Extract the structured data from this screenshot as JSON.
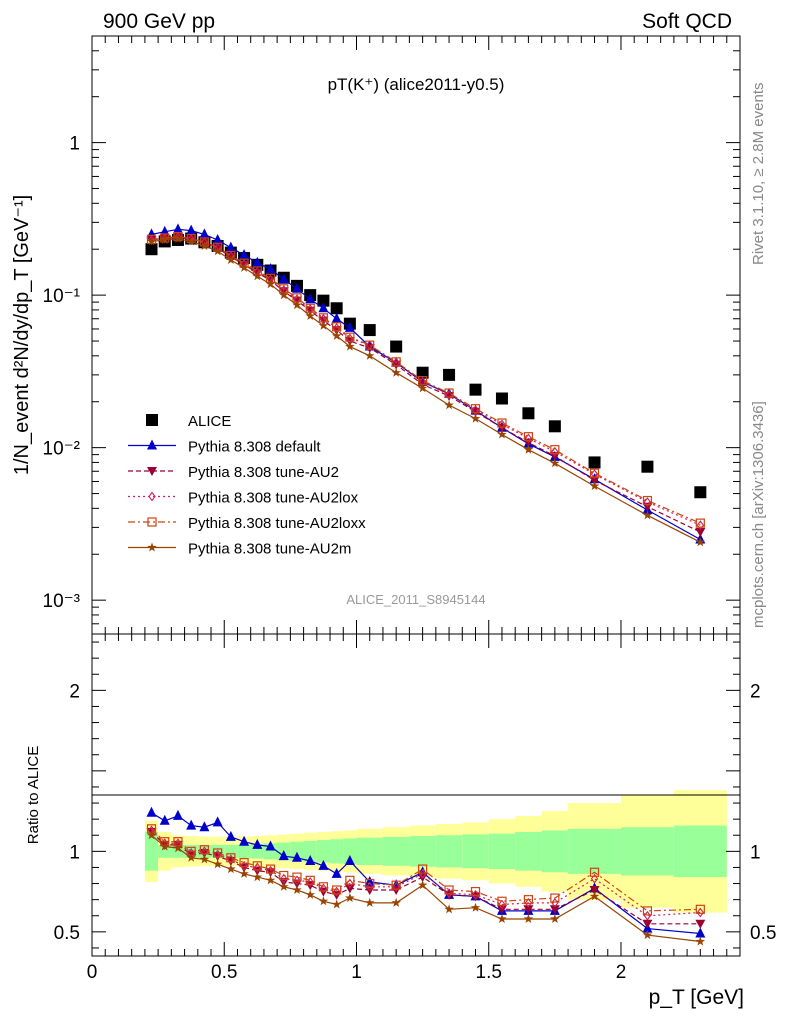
{
  "header": {
    "left": "900 GeV pp",
    "right": "Soft QCD"
  },
  "side_text": {
    "rivet": "Rivet 3.1.10, ≥ 2.8M events",
    "mcplots": "mcplots.cern.ch [arXiv:1306.3436]"
  },
  "chart_data": [
    {
      "type": "scatter",
      "panel": "main",
      "title": "pT(K⁺) (alice2011-y0.5)",
      "watermark": "ALICE_2011_S8945144",
      "ylabel": "1/N_event d²N/dy/dp_T [GeV⁻¹]",
      "xlabel": "p_T [GeV]",
      "xlim": [
        0,
        2.45
      ],
      "ylim": [
        0.0006,
        5
      ],
      "yscale": "log",
      "x_ticks": [
        "0",
        "0.5",
        "1",
        "1.5",
        "2"
      ],
      "y_ticks": [
        "10⁻³",
        "10⁻²",
        "10⁻¹",
        "1"
      ],
      "legend_position": "bottom-left",
      "x": [
        0.225,
        0.275,
        0.325,
        0.375,
        0.425,
        0.475,
        0.525,
        0.575,
        0.625,
        0.675,
        0.725,
        0.775,
        0.825,
        0.875,
        0.925,
        0.975,
        1.05,
        1.15,
        1.25,
        1.35,
        1.45,
        1.55,
        1.65,
        1.75,
        1.9,
        2.1,
        2.3
      ],
      "series": [
        {
          "name": "ALICE",
          "color": "#000000",
          "marker": "square",
          "style": "none",
          "values": [
            0.2,
            0.225,
            0.23,
            0.235,
            0.222,
            0.21,
            0.19,
            0.175,
            0.158,
            0.145,
            0.13,
            0.115,
            0.1,
            0.092,
            0.082,
            0.065,
            0.059,
            0.046,
            0.031,
            0.03,
            0.024,
            0.021,
            0.0168,
            0.0138,
            0.008,
            0.0075,
            0.0051
          ]
        },
        {
          "name": "Pythia 8.308 default",
          "color": "#0000cc",
          "marker": "triangle-up",
          "style": "solid",
          "values": [
            0.25,
            0.26,
            0.27,
            0.265,
            0.25,
            0.23,
            0.205,
            0.183,
            0.163,
            0.148,
            0.127,
            0.11,
            0.094,
            0.082,
            0.07,
            0.061,
            0.046,
            0.036,
            0.027,
            0.0225,
            0.0175,
            0.0135,
            0.0106,
            0.0087,
            0.0062,
            0.0039,
            0.0025
          ]
        },
        {
          "name": "Pythia 8.308 tune-AU2",
          "color": "#990033",
          "marker": "triangle-down",
          "style": "dashed",
          "values": [
            0.23,
            0.235,
            0.24,
            0.232,
            0.22,
            0.203,
            0.178,
            0.158,
            0.14,
            0.125,
            0.106,
            0.092,
            0.079,
            0.068,
            0.059,
            0.05,
            0.045,
            0.035,
            0.026,
            0.0218,
            0.0172,
            0.0135,
            0.0108,
            0.0088,
            0.0061,
            0.0041,
            0.0028
          ]
        },
        {
          "name": "Pythia 8.308 tune-AU2lox",
          "color": "#cc2255",
          "marker": "diamond-open",
          "style": "dotted",
          "values": [
            0.23,
            0.235,
            0.24,
            0.233,
            0.222,
            0.205,
            0.18,
            0.16,
            0.142,
            0.127,
            0.108,
            0.094,
            0.081,
            0.07,
            0.061,
            0.052,
            0.047,
            0.036,
            0.027,
            0.0222,
            0.0176,
            0.0142,
            0.0115,
            0.0094,
            0.0067,
            0.0044,
            0.0031
          ]
        },
        {
          "name": "Pythia 8.308 tune-AU2loxx",
          "color": "#cc4411",
          "marker": "square-open",
          "style": "dashdot",
          "values": [
            0.232,
            0.237,
            0.242,
            0.235,
            0.223,
            0.206,
            0.182,
            0.162,
            0.144,
            0.129,
            0.11,
            0.096,
            0.082,
            0.071,
            0.062,
            0.053,
            0.047,
            0.0365,
            0.0275,
            0.0228,
            0.018,
            0.0145,
            0.0118,
            0.0097,
            0.0068,
            0.0045,
            0.0032
          ]
        },
        {
          "name": "Pythia 8.308 tune-AU2m",
          "color": "#994400",
          "marker": "star",
          "style": "solid",
          "values": [
            0.225,
            0.23,
            0.234,
            0.225,
            0.21,
            0.194,
            0.17,
            0.151,
            0.133,
            0.118,
            0.1,
            0.086,
            0.073,
            0.063,
            0.054,
            0.046,
            0.04,
            0.031,
            0.0245,
            0.019,
            0.0155,
            0.0122,
            0.0097,
            0.0079,
            0.0056,
            0.0036,
            0.0024
          ]
        }
      ]
    },
    {
      "type": "scatter",
      "panel": "ratio",
      "ylabel": "Ratio to ALICE",
      "xlim": [
        0,
        2.45
      ],
      "ylim": [
        0.35,
        2.35
      ],
      "y_ticks": [
        "0.5",
        "1",
        "2"
      ],
      "band_edges": [
        0.2,
        0.25,
        0.3,
        0.35,
        0.4,
        0.45,
        0.5,
        0.55,
        0.6,
        0.65,
        0.7,
        0.75,
        0.8,
        0.85,
        0.9,
        0.95,
        1.0,
        1.1,
        1.2,
        1.3,
        1.4,
        1.5,
        1.6,
        1.7,
        1.8,
        2.0,
        2.2,
        2.4
      ],
      "band_outer": [
        0.19,
        0.12,
        0.1,
        0.095,
        0.092,
        0.09,
        0.09,
        0.092,
        0.095,
        0.1,
        0.105,
        0.11,
        0.115,
        0.12,
        0.125,
        0.13,
        0.14,
        0.15,
        0.16,
        0.17,
        0.18,
        0.2,
        0.22,
        0.25,
        0.3,
        0.35,
        0.38
      ],
      "band_inner": [
        0.12,
        0.04,
        0.04,
        0.04,
        0.04,
        0.04,
        0.04,
        0.042,
        0.045,
        0.05,
        0.055,
        0.06,
        0.065,
        0.07,
        0.075,
        0.08,
        0.085,
        0.09,
        0.095,
        0.1,
        0.105,
        0.11,
        0.12,
        0.13,
        0.14,
        0.15,
        0.16
      ],
      "band_colors": {
        "outer": "#ffff99",
        "inner": "#99ff99"
      },
      "series": [
        {
          "name": "Pythia 8.308 default",
          "color": "#0000cc",
          "values": [
            1.24,
            1.19,
            1.22,
            1.16,
            1.15,
            1.18,
            1.09,
            1.06,
            1.04,
            1.03,
            0.97,
            0.96,
            0.94,
            0.91,
            0.86,
            0.94,
            0.81,
            0.79,
            0.87,
            0.73,
            0.72,
            0.63,
            0.63,
            0.63,
            0.77,
            0.52,
            0.49
          ]
        },
        {
          "name": "Pythia 8.308 tune-AU2",
          "color": "#990033",
          "values": [
            1.12,
            1.04,
            1.04,
            0.98,
            0.99,
            0.97,
            0.94,
            0.9,
            0.88,
            0.87,
            0.81,
            0.8,
            0.79,
            0.75,
            0.73,
            0.77,
            0.76,
            0.76,
            0.84,
            0.73,
            0.72,
            0.64,
            0.64,
            0.64,
            0.76,
            0.55,
            0.55
          ]
        },
        {
          "name": "Pythia 8.308 tune-AU2lox",
          "color": "#cc2255",
          "values": [
            1.13,
            1.05,
            1.05,
            0.99,
            1.0,
            0.98,
            0.95,
            0.91,
            0.9,
            0.88,
            0.83,
            0.82,
            0.81,
            0.77,
            0.75,
            0.8,
            0.78,
            0.78,
            0.86,
            0.74,
            0.73,
            0.67,
            0.68,
            0.68,
            0.83,
            0.6,
            0.62
          ]
        },
        {
          "name": "Pythia 8.308 tune-AU2loxx",
          "color": "#cc4411",
          "values": [
            1.14,
            1.06,
            1.06,
            1.0,
            1.01,
            0.99,
            0.96,
            0.93,
            0.91,
            0.89,
            0.85,
            0.84,
            0.82,
            0.78,
            0.76,
            0.82,
            0.8,
            0.79,
            0.89,
            0.76,
            0.75,
            0.69,
            0.7,
            0.71,
            0.87,
            0.63,
            0.64
          ]
        },
        {
          "name": "Pythia 8.308 tune-AU2m",
          "color": "#994400",
          "values": [
            1.1,
            1.03,
            1.02,
            0.96,
            0.95,
            0.92,
            0.89,
            0.86,
            0.84,
            0.82,
            0.78,
            0.76,
            0.73,
            0.69,
            0.67,
            0.71,
            0.68,
            0.68,
            0.79,
            0.64,
            0.65,
            0.58,
            0.58,
            0.58,
            0.72,
            0.48,
            0.44
          ]
        }
      ]
    }
  ]
}
